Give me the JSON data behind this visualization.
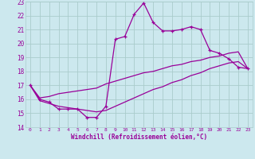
{
  "xlabel": "Windchill (Refroidissement éolien,°C)",
  "xlim": [
    -0.5,
    23.5
  ],
  "ylim": [
    14,
    23
  ],
  "yticks": [
    14,
    15,
    16,
    17,
    18,
    19,
    20,
    21,
    22,
    23
  ],
  "xticks": [
    0,
    1,
    2,
    3,
    4,
    5,
    6,
    7,
    8,
    9,
    10,
    11,
    12,
    13,
    14,
    15,
    16,
    17,
    18,
    19,
    20,
    21,
    22,
    23
  ],
  "bg_color": "#cce8ee",
  "grid_color": "#aacccc",
  "line_color": "#990099",
  "line1_x": [
    0,
    1,
    2,
    3,
    4,
    5,
    6,
    7,
    8,
    9,
    10,
    11,
    12,
    13,
    14,
    15,
    16,
    17,
    18,
    19,
    20,
    21,
    22,
    23
  ],
  "line1_y": [
    17.0,
    16.0,
    15.8,
    15.3,
    15.3,
    15.3,
    14.7,
    14.7,
    15.5,
    20.3,
    20.5,
    22.1,
    22.9,
    21.5,
    20.9,
    20.9,
    21.0,
    21.2,
    21.0,
    19.5,
    19.3,
    18.9,
    18.3,
    18.2
  ],
  "line2_x": [
    0,
    1,
    2,
    3,
    4,
    5,
    6,
    7,
    8,
    9,
    10,
    11,
    12,
    13,
    14,
    15,
    16,
    17,
    18,
    19,
    20,
    21,
    22,
    23
  ],
  "line2_y": [
    17.0,
    16.1,
    16.2,
    16.4,
    16.5,
    16.6,
    16.7,
    16.8,
    17.1,
    17.3,
    17.5,
    17.7,
    17.9,
    18.0,
    18.2,
    18.4,
    18.5,
    18.7,
    18.8,
    19.0,
    19.1,
    19.3,
    19.4,
    18.2
  ],
  "line3_x": [
    0,
    1,
    2,
    3,
    4,
    5,
    6,
    7,
    8,
    9,
    10,
    11,
    12,
    13,
    14,
    15,
    16,
    17,
    18,
    19,
    20,
    21,
    22,
    23
  ],
  "line3_y": [
    17.0,
    15.9,
    15.7,
    15.5,
    15.4,
    15.3,
    15.2,
    15.1,
    15.2,
    15.5,
    15.8,
    16.1,
    16.4,
    16.7,
    16.9,
    17.2,
    17.4,
    17.7,
    17.9,
    18.2,
    18.4,
    18.6,
    18.7,
    18.2
  ]
}
